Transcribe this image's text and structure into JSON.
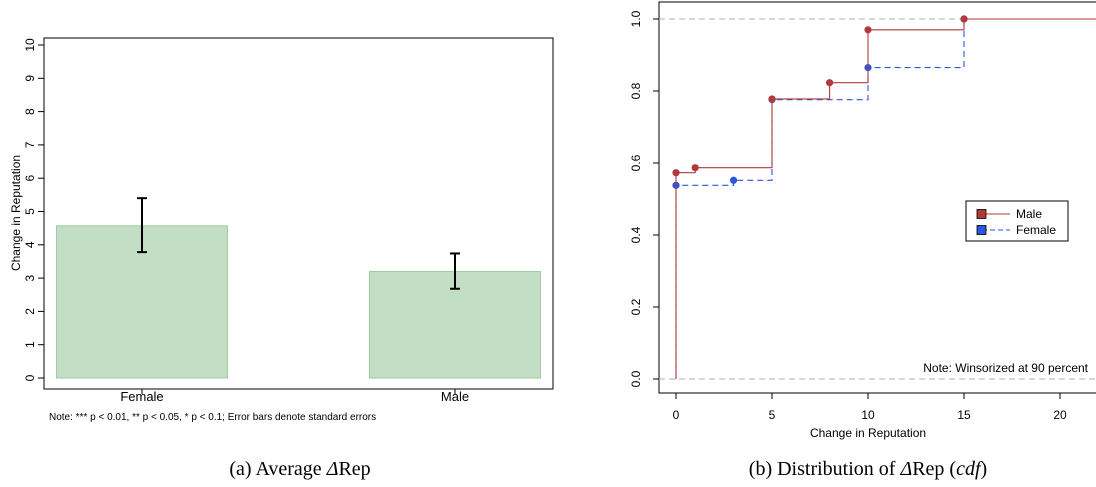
{
  "chart_data": [
    {
      "type": "bar",
      "ylabel": "Change in Reputation",
      "xlabel": "",
      "ylim": [
        0,
        10
      ],
      "yticks": [
        0,
        1,
        2,
        3,
        4,
        5,
        6,
        7,
        8,
        9,
        10
      ],
      "categories": [
        "Female",
        "Male"
      ],
      "values": [
        4.57,
        3.2
      ],
      "error_bars": [
        {
          "low": 3.78,
          "high": 5.4
        },
        {
          "low": 2.68,
          "high": 3.74
        }
      ],
      "bar_color": "#c2dfc5",
      "bar_edge_color": "#9fcaa4",
      "note": "Note: *** p < 0.01, ** p < 0.05, * p < 0.1; Error bars denote standard errors",
      "caption": {
        "prefix": "(a) Average ",
        "delta": "Δ",
        "suffix": "Rep"
      }
    },
    {
      "type": "line",
      "subtype": "step-cdf",
      "xlabel": "Change in Reputation",
      "ylabel": "",
      "xlim": [
        -0.9,
        22
      ],
      "ylim": [
        -0.03,
        1.03
      ],
      "xticks": [
        0,
        5,
        10,
        15,
        20
      ],
      "yticks": [
        0.0,
        0.2,
        0.4,
        0.6,
        0.8,
        1.0
      ],
      "yticklabels": [
        "0.0",
        "0.2",
        "0.4",
        "0.6",
        "0.8",
        "1.0"
      ],
      "reference_lines": [
        0,
        1
      ],
      "series": [
        {
          "name": "Male",
          "color": "#b03a3a",
          "line_style": "solid",
          "points": [
            [
              0,
              0.573
            ],
            [
              1,
              0.587
            ],
            [
              5,
              0.778
            ],
            [
              8,
              0.823
            ],
            [
              10,
              0.97
            ],
            [
              15,
              1.0
            ]
          ]
        },
        {
          "name": "Female",
          "color": "#2a55e0",
          "line_style": "dashed",
          "points": [
            [
              0,
              0.538
            ],
            [
              3,
              0.552
            ],
            [
              5,
              0.776
            ],
            [
              10,
              0.865
            ],
            [
              15,
              1.0
            ]
          ]
        }
      ],
      "legend_position": "middle-right",
      "note": "Note: Winsorized at 90 percent",
      "caption": {
        "prefix": "(b) Distribution of ",
        "delta": "Δ",
        "middle": "Rep (",
        "italic": "cdf",
        "suffix": ")"
      }
    }
  ]
}
